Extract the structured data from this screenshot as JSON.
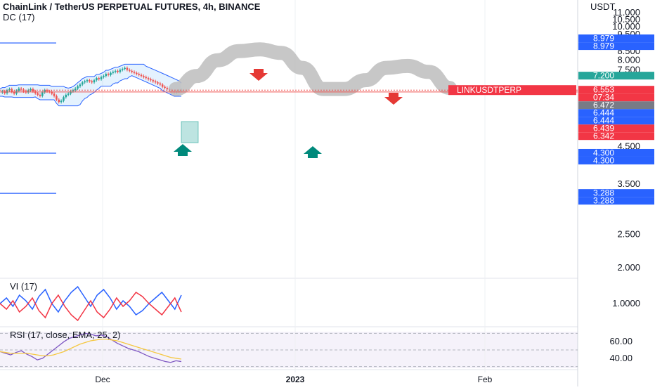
{
  "title": "ChainLink / TetherUS PERPETUAL FUTURES, 4h, BINANCE",
  "indicator_main": "DC (17)",
  "indicator_vi": "VI (17)",
  "indicator_rsi": "RSI (17, close, EMA, 25, 2)",
  "currency": "USDT",
  "symbol_label": "LINKUSDTPERP",
  "colors": {
    "candle_up": "#26a69a",
    "candle_down": "#ef5350",
    "donchian": "#2962ff",
    "donchian_fill": "rgba(33,150,243,0.12)",
    "path_gray": "#bdbdbd",
    "arrow_down": "#e53935",
    "arrow_up": "#00897b",
    "vi_plus": "#2962ff",
    "vi_minus": "#f23645",
    "rsi": "#7e57c2",
    "rsi_ma": "#f5c842",
    "rsi_bg": "rgba(126,87,194,0.08)"
  },
  "chart_data": [
    {
      "type": "candlestick",
      "title": "ChainLink / TetherUS PERPETUAL FUTURES, 4h, BINANCE",
      "ylabel": "USDT",
      "ylim": [
        1.9,
        11.2
      ],
      "y_scale": "log",
      "y_ticks": [
        "2.000",
        "2.500",
        "3.500",
        "4.500",
        "7.500",
        "8.000",
        "8.500",
        "9.500",
        "10.000",
        "10.500",
        "11.000"
      ],
      "x_ticks": [
        "Dec",
        "2023",
        "Feb"
      ],
      "price_guides": [
        {
          "label": "8.979",
          "value": 8.979,
          "color": "#2962ff"
        },
        {
          "label": "8.979",
          "value": 8.979,
          "color": "#2962ff"
        },
        {
          "label": "7.200",
          "value": 7.2,
          "color": "#26a69a"
        },
        {
          "label": "6.553",
          "value": 6.553,
          "color": "#f23645"
        },
        {
          "label": "07:34",
          "value": 6.553,
          "color": "#f23645"
        },
        {
          "label": "6.472",
          "value": 6.472,
          "color": "#787b86"
        },
        {
          "label": "6.444",
          "value": 6.444,
          "color": "#2962ff"
        },
        {
          "label": "6.444",
          "value": 6.444,
          "color": "#2962ff"
        },
        {
          "label": "6.439",
          "value": 6.439,
          "color": "#f23645"
        },
        {
          "label": "6.342",
          "value": 6.342,
          "color": "#f23645"
        },
        {
          "label": "4.300",
          "value": 4.3,
          "color": "#2962ff"
        },
        {
          "label": "4.300",
          "value": 4.3,
          "color": "#2962ff"
        },
        {
          "label": "3.288",
          "value": 3.288,
          "color": "#2962ff"
        },
        {
          "label": "3.288",
          "value": 3.288,
          "color": "#2962ff"
        }
      ],
      "horizontal_levels": [
        8.979,
        4.3,
        3.288
      ],
      "close_series": [
        6.45,
        6.5,
        6.42,
        6.55,
        6.6,
        6.48,
        6.4,
        6.52,
        6.62,
        6.58,
        6.5,
        6.45,
        6.55,
        6.6,
        6.5,
        6.42,
        6.35,
        6.3,
        6.45,
        6.55,
        6.5,
        6.48,
        6.4,
        6.3,
        6.15,
        6.05,
        6.1,
        6.25,
        6.35,
        6.4,
        6.5,
        6.55,
        6.62,
        6.72,
        6.8,
        6.9,
        6.95,
        7.0,
        6.95,
        6.9,
        7.0,
        7.1,
        7.05,
        7.15,
        7.2,
        7.3,
        7.25,
        7.35,
        7.4,
        7.45,
        7.4,
        7.5,
        7.55,
        7.6,
        7.5,
        7.45,
        7.4,
        7.35,
        7.3,
        7.25,
        7.2,
        7.15,
        7.1,
        7.05,
        7.0,
        6.95,
        6.9,
        6.85,
        6.8,
        6.7,
        6.65,
        6.6,
        6.55,
        6.5,
        6.45,
        6.5,
        6.53,
        6.55
      ],
      "forecast_path": [
        6.6,
        7.2,
        8.0,
        8.5,
        8.6,
        8.4,
        7.6,
        6.6,
        6.6,
        7.0,
        7.6,
        7.7,
        7.4,
        6.65
      ]
    },
    {
      "type": "line",
      "title": "VI (17)",
      "y_ticks": [
        "1.0000"
      ],
      "series": [
        {
          "values": [
            1.0,
            1.04,
            0.98,
            1.06,
            1.02,
            0.96,
            1.05,
            1.1,
            1.0,
            0.94,
            1.02,
            1.08,
            1.12,
            1.05,
            0.98,
            1.06,
            1.1,
            1.04,
            0.96,
            1.02,
            0.98,
            0.92,
            0.95,
            1.0,
            1.04,
            1.08,
            1.02,
            0.96,
            1.06
          ]
        },
        {
          "values": [
            1.0,
            0.96,
            1.02,
            0.94,
            0.98,
            1.04,
            0.95,
            0.9,
            1.0,
            1.06,
            0.98,
            0.92,
            0.88,
            0.95,
            1.02,
            0.94,
            0.9,
            0.96,
            1.04,
            0.98,
            1.02,
            1.08,
            1.05,
            1.0,
            0.96,
            0.92,
            0.98,
            1.04,
            0.94
          ]
        }
      ]
    },
    {
      "type": "line",
      "title": "RSI (17, close, EMA, 25, 2)",
      "y_ticks": [
        "60.00",
        "40.00"
      ],
      "ylim": [
        28,
        72
      ],
      "series": [
        {
          "values": [
            48,
            46,
            44,
            47,
            49,
            45,
            42,
            38,
            40,
            45,
            50,
            55,
            60,
            64,
            66,
            68,
            70,
            69,
            67,
            68,
            66,
            62,
            58,
            55,
            52,
            50,
            48,
            45,
            42,
            40,
            38,
            36,
            35,
            37,
            36
          ]
        },
        {
          "values": [
            48,
            47,
            46,
            46,
            46,
            46,
            45,
            44,
            43,
            43,
            44,
            46,
            48,
            51,
            54,
            57,
            59,
            61,
            62,
            63,
            63,
            62,
            61,
            59,
            57,
            55,
            53,
            51,
            49,
            47,
            45,
            43,
            41,
            40,
            39
          ]
        }
      ]
    }
  ]
}
